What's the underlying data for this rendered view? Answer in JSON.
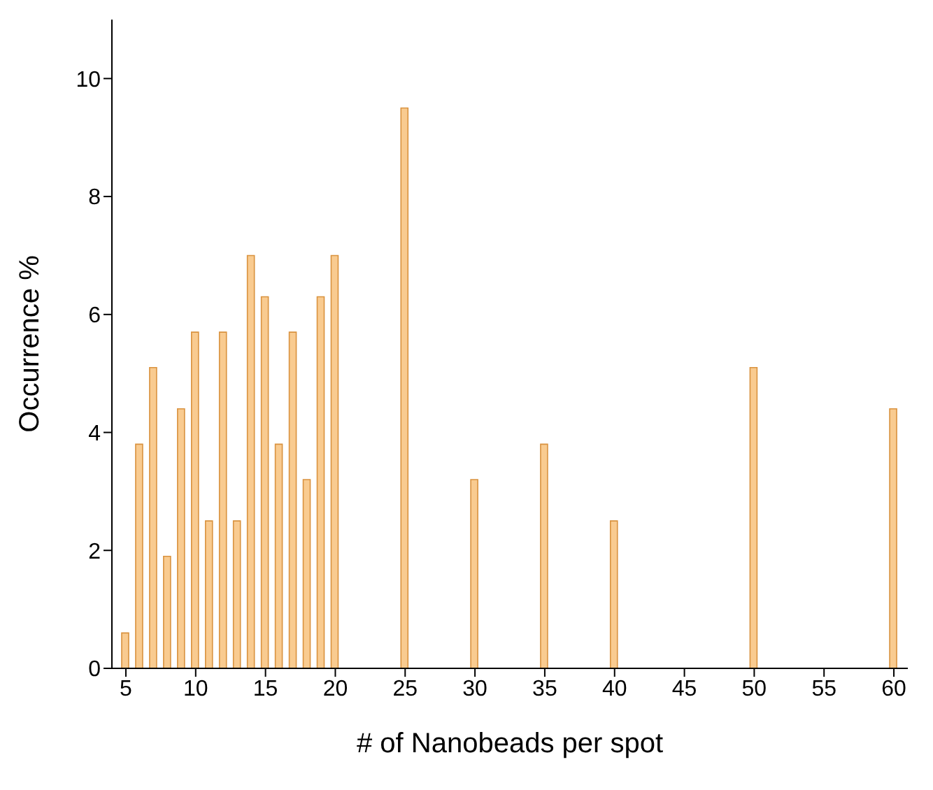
{
  "chart_data": {
    "type": "bar",
    "xlabel": "# of Nanobeads per spot",
    "ylabel": "Occurrence %",
    "x": [
      5,
      6,
      7,
      8,
      9,
      10,
      11,
      12,
      13,
      14,
      15,
      16,
      17,
      18,
      19,
      20,
      25,
      30,
      35,
      40,
      50,
      60
    ],
    "values": [
      0.6,
      3.8,
      5.1,
      1.9,
      4.4,
      5.7,
      2.5,
      5.7,
      2.5,
      7.0,
      6.3,
      3.8,
      5.7,
      3.2,
      6.3,
      7.0,
      9.5,
      3.2,
      3.8,
      2.5,
      5.1,
      4.4
    ],
    "color": "#f9cb90",
    "xlim": [
      4,
      61
    ],
    "xticks": [
      5,
      10,
      15,
      20,
      25,
      30,
      35,
      40,
      45,
      50,
      55,
      60
    ],
    "ylim": [
      0,
      11
    ],
    "yticks": [
      0,
      2,
      4,
      6,
      8,
      10
    ],
    "grid": false
  }
}
